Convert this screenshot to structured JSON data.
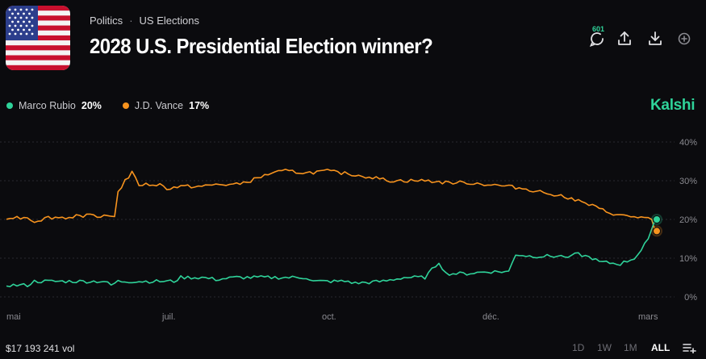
{
  "header": {
    "breadcrumb": [
      "Politics",
      "US Elections"
    ],
    "breadcrumb_separator": "·",
    "title": "2028 U.S. Presidential Election winner?"
  },
  "actions": {
    "comment_count": "601",
    "icons": [
      "comment-icon",
      "share-icon",
      "download-icon",
      "add-icon"
    ]
  },
  "legend": [
    {
      "name": "Marco Rubio",
      "value": "20%",
      "color": "#2fd39a"
    },
    {
      "name": "J.D. Vance",
      "value": "17%",
      "color": "#f7931e"
    }
  ],
  "brand": "Kalshi",
  "footer": {
    "volume": "$17 193 241 vol",
    "ranges": [
      "1D",
      "1W",
      "1M",
      "ALL"
    ],
    "active_range": "ALL"
  },
  "chart_data": {
    "type": "line",
    "x_labels": [
      "mai",
      "juil.",
      "oct.",
      "déc.",
      "mars"
    ],
    "y_ticks": [
      "0%",
      "10%",
      "20%",
      "30%",
      "40%"
    ],
    "ylim": [
      0,
      40
    ],
    "grid": true,
    "grid_style": "dotted",
    "series": [
      {
        "name": "J.D. Vance",
        "color": "#f7931e",
        "end_value": 17,
        "points": [
          [
            0,
            20.5
          ],
          [
            0.03,
            20.5
          ],
          [
            0.04,
            19.5
          ],
          [
            0.06,
            20.5
          ],
          [
            0.09,
            20.5
          ],
          [
            0.1,
            21
          ],
          [
            0.13,
            21
          ],
          [
            0.155,
            21
          ],
          [
            0.16,
            27
          ],
          [
            0.17,
            30
          ],
          [
            0.18,
            32
          ],
          [
            0.19,
            29
          ],
          [
            0.22,
            29
          ],
          [
            0.23,
            28
          ],
          [
            0.25,
            28.5
          ],
          [
            0.28,
            28.5
          ],
          [
            0.3,
            29
          ],
          [
            0.33,
            29
          ],
          [
            0.35,
            30
          ],
          [
            0.38,
            32
          ],
          [
            0.4,
            32.5
          ],
          [
            0.43,
            32
          ],
          [
            0.46,
            32.5
          ],
          [
            0.48,
            32
          ],
          [
            0.5,
            31.5
          ],
          [
            0.52,
            31
          ],
          [
            0.55,
            30
          ],
          [
            0.6,
            30
          ],
          [
            0.63,
            29.5
          ],
          [
            0.66,
            29.5
          ],
          [
            0.69,
            29
          ],
          [
            0.72,
            28.5
          ],
          [
            0.74,
            28
          ],
          [
            0.77,
            27
          ],
          [
            0.8,
            26
          ],
          [
            0.84,
            23.5
          ],
          [
            0.86,
            22
          ],
          [
            0.88,
            21
          ],
          [
            0.91,
            20.5
          ],
          [
            0.925,
            20
          ],
          [
            0.93,
            17
          ]
        ]
      },
      {
        "name": "Marco Rubio",
        "color": "#2fd39a",
        "end_value": 20,
        "points": [
          [
            0,
            3
          ],
          [
            0.03,
            3
          ],
          [
            0.04,
            4
          ],
          [
            0.14,
            4
          ],
          [
            0.15,
            3
          ],
          [
            0.16,
            4
          ],
          [
            0.24,
            4
          ],
          [
            0.25,
            5
          ],
          [
            0.28,
            5
          ],
          [
            0.3,
            4.5
          ],
          [
            0.33,
            5
          ],
          [
            0.43,
            5
          ],
          [
            0.44,
            4
          ],
          [
            0.49,
            4
          ],
          [
            0.5,
            3.5
          ],
          [
            0.54,
            4
          ],
          [
            0.57,
            5
          ],
          [
            0.6,
            5
          ],
          [
            0.62,
            9
          ],
          [
            0.63,
            6
          ],
          [
            0.66,
            6
          ],
          [
            0.69,
            6.5
          ],
          [
            0.72,
            6.5
          ],
          [
            0.73,
            11
          ],
          [
            0.75,
            10.5
          ],
          [
            0.8,
            10.5
          ],
          [
            0.82,
            11
          ],
          [
            0.84,
            10
          ],
          [
            0.85,
            9
          ],
          [
            0.88,
            8.5
          ],
          [
            0.9,
            10
          ],
          [
            0.91,
            12
          ],
          [
            0.92,
            15
          ],
          [
            0.93,
            20
          ]
        ]
      }
    ]
  }
}
